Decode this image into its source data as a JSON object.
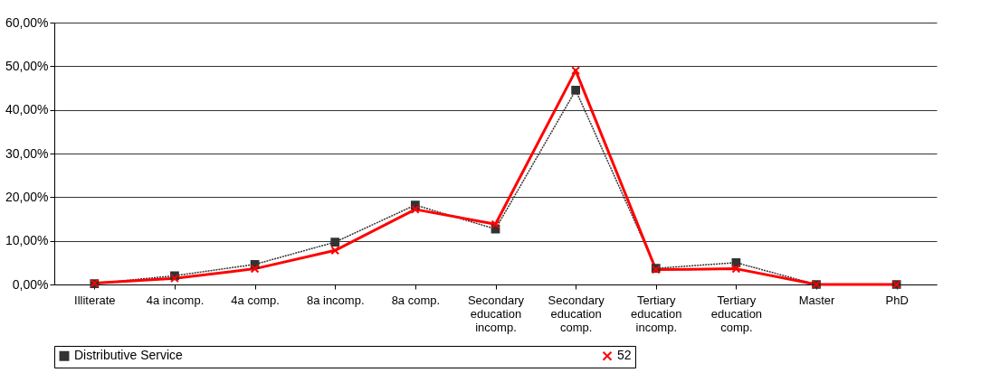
{
  "chart_data": {
    "type": "line",
    "categories": [
      "Illiterate",
      "4a incomp.",
      "4a comp.",
      "8a incomp.",
      "8a comp.",
      "Secondary education incomp.",
      "Secondary education comp.",
      "Tertiary education incomp.",
      "Tertiary education comp.",
      "Master",
      "PhD"
    ],
    "series": [
      {
        "name": "Distributive Service",
        "color": "#333333",
        "marker": "square",
        "line_style": "dotted",
        "values": [
          0.2,
          2.0,
          4.6,
          9.7,
          18.2,
          12.7,
          44.5,
          3.7,
          5.0,
          0,
          0
        ]
      },
      {
        "name": "52",
        "color": "#ff0000",
        "marker": "cross",
        "line_style": "solid",
        "values": [
          0.3,
          1.4,
          3.6,
          7.8,
          17.2,
          13.8,
          49.0,
          3.4,
          3.6,
          0,
          0
        ]
      }
    ],
    "ylim": [
      0,
      60
    ],
    "yticks": [
      {
        "value": 0,
        "label": "0,00%"
      },
      {
        "value": 10,
        "label": "10,00%"
      },
      {
        "value": 20,
        "label": "20,00%"
      },
      {
        "value": 30,
        "label": "30,00%"
      },
      {
        "value": 40,
        "label": "40,00%"
      },
      {
        "value": 50,
        "label": "50,00%"
      },
      {
        "value": 60,
        "label": "60,00%"
      }
    ],
    "grid": "y",
    "legend": "bottom"
  }
}
